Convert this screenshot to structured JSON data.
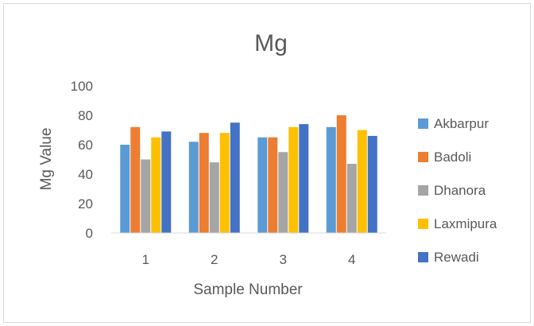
{
  "chart_data": {
    "type": "bar",
    "title": "Mg",
    "xlabel": "Sample Number",
    "ylabel": "Mg Value",
    "categories": [
      "1",
      "2",
      "3",
      "4"
    ],
    "ylim": [
      0,
      100
    ],
    "yticks": [
      0,
      20,
      40,
      60,
      80,
      100
    ],
    "grid": false,
    "legend_position": "right",
    "series": [
      {
        "name": "Akbarpur",
        "color": "#5b9bd5",
        "values": [
          60,
          62,
          65,
          72
        ]
      },
      {
        "name": "Badoli",
        "color": "#ed7d31",
        "values": [
          72,
          68,
          65,
          80
        ]
      },
      {
        "name": "Dhanora",
        "color": "#a5a5a5",
        "values": [
          50,
          48,
          55,
          47
        ]
      },
      {
        "name": "Laxmipura",
        "color": "#ffc000",
        "values": [
          65,
          68,
          72,
          70
        ]
      },
      {
        "name": "Rewadi",
        "color": "#4472c4",
        "values": [
          69,
          75,
          74,
          66
        ]
      }
    ]
  }
}
